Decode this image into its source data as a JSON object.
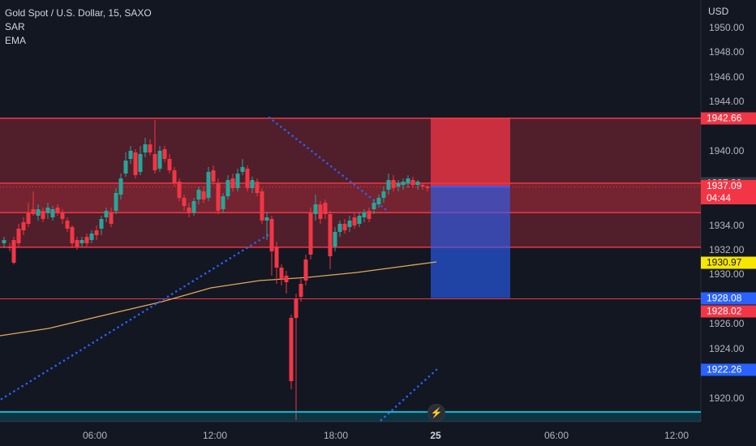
{
  "legend": {
    "symbol": "Gold Spot / U.S. Dollar, 15, SAXO",
    "indicator1": "SAR",
    "indicator2": "EMA"
  },
  "price_axis": {
    "currency": "USD",
    "labels": [
      "1950.00",
      "1948.00",
      "1946.00",
      "1944.00",
      "1940.00",
      "1934.00",
      "1932.00",
      "1930.00",
      "1926.00",
      "1924.00",
      "1920.00"
    ]
  },
  "time_axis": {
    "labels": [
      "06:00",
      "12:00",
      "18:00",
      "25",
      "06:00",
      "12:00"
    ]
  },
  "price_tags": [
    {
      "value": "1942.66",
      "bg": "#f23645",
      "color": "#ffffff",
      "sub": ""
    },
    {
      "value": "1937.39",
      "bg": "#363a45",
      "color": "#d1d4dc",
      "sub": ""
    },
    {
      "value": "1937.09",
      "bg": "#f23645",
      "color": "#ffffff",
      "sub": "04:44"
    },
    {
      "value": "1930.97",
      "bg": "#f7e600",
      "color": "#131722",
      "sub": ""
    },
    {
      "value": "1928.08",
      "bg": "#2962ff",
      "color": "#ffffff",
      "sub": ""
    },
    {
      "value": "1928.02",
      "bg": "#f23645",
      "color": "#ffffff",
      "sub": ""
    },
    {
      "value": "1922.26",
      "bg": "#2962ff",
      "color": "#ffffff",
      "sub": ""
    }
  ],
  "zones": {
    "outer_top": 1942.66,
    "outer_bottom": 1932.2,
    "inner_top": 1937.39,
    "inner_bottom": 1935.0,
    "line_bottom": 1928.02
  },
  "position": {
    "stop": 1942.66,
    "entry": 1937.09,
    "target": 1928.08
  },
  "colors": {
    "background": "#131722",
    "up": "#26a69a",
    "down": "#f23645",
    "ema": "#e0a85a",
    "sar": "#2962ff",
    "zone_fill": "rgba(242,54,69,0.28)",
    "zone_line": "#f23645",
    "teal_line": "#00bcd4"
  },
  "icons": {
    "flash": "lightning-icon"
  }
}
